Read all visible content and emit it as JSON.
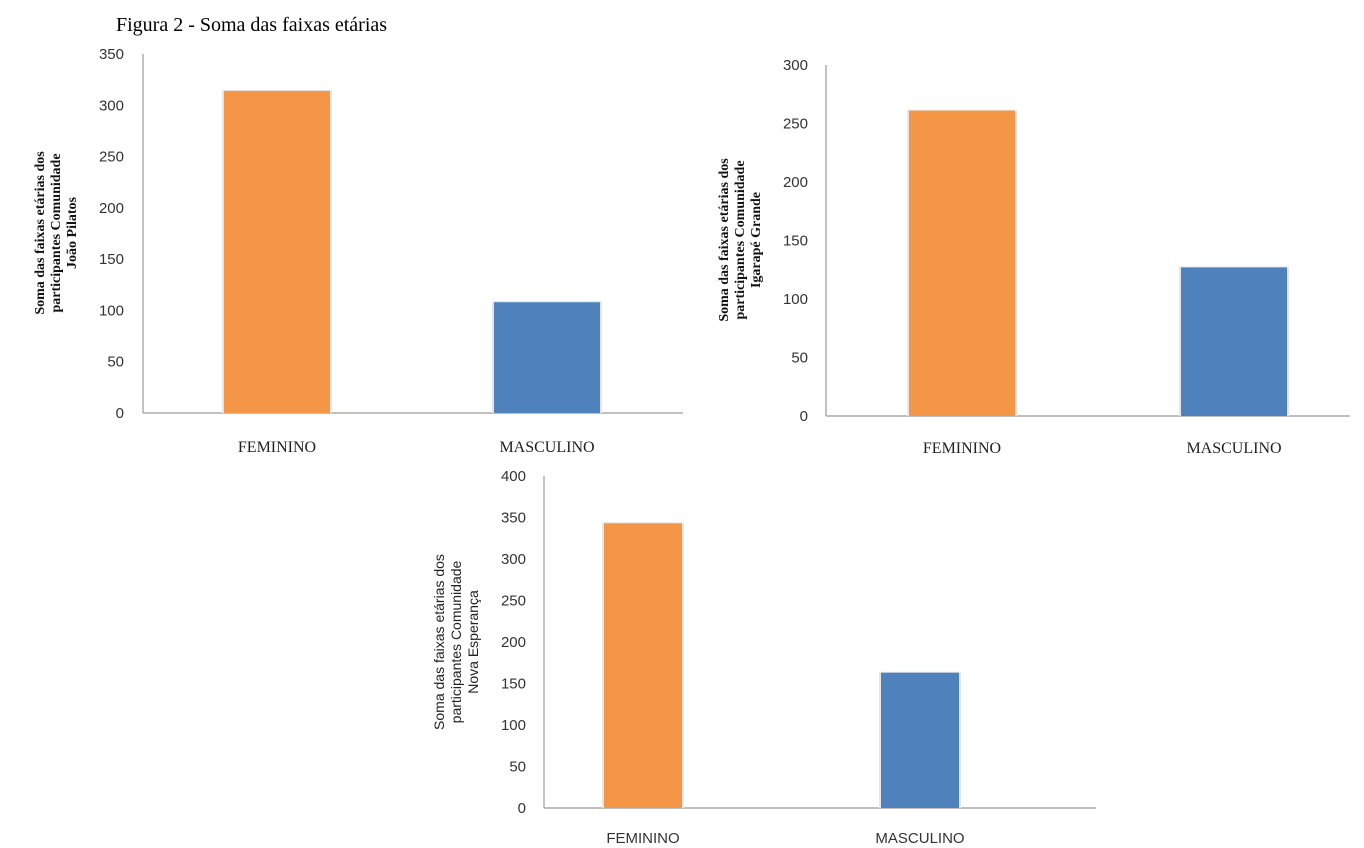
{
  "figure_title": "Figura 2 - Soma das faixas etárias",
  "colors": {
    "feminino": "#F59646",
    "masculino": "#4F81BD",
    "axis": "#9A9A9A"
  },
  "chart_data": [
    {
      "type": "bar",
      "categories": [
        "FEMININO",
        "MASCULINO"
      ],
      "values": [
        314,
        108
      ],
      "ylabel": [
        "Soma das faixas etárias dos",
        "participantes Comunidade",
        "João Pilatos"
      ],
      "ylim": [
        0,
        350
      ],
      "ticks": [
        0,
        50,
        100,
        150,
        200,
        250,
        300,
        350
      ],
      "grid": false,
      "legend": "none"
    },
    {
      "type": "bar",
      "categories": [
        "FEMININO",
        "MASCULINO"
      ],
      "values": [
        261,
        127
      ],
      "ylabel": [
        "Soma das faixas etárias dos",
        "participantes Comunidade",
        "Igarapé Grande"
      ],
      "ylim": [
        0,
        300
      ],
      "ticks": [
        0,
        50,
        100,
        150,
        200,
        250,
        300
      ],
      "grid": false,
      "legend": "none"
    },
    {
      "type": "bar",
      "categories": [
        "FEMININO",
        "MASCULINO"
      ],
      "values": [
        343,
        163
      ],
      "ylabel": [
        "Soma das faixas etárias dos",
        "participantes Comunidade",
        "Nova Esperança"
      ],
      "ylim": [
        0,
        400
      ],
      "ticks": [
        0,
        50,
        100,
        150,
        200,
        250,
        300,
        350,
        400
      ],
      "grid": false,
      "legend": "none"
    }
  ]
}
